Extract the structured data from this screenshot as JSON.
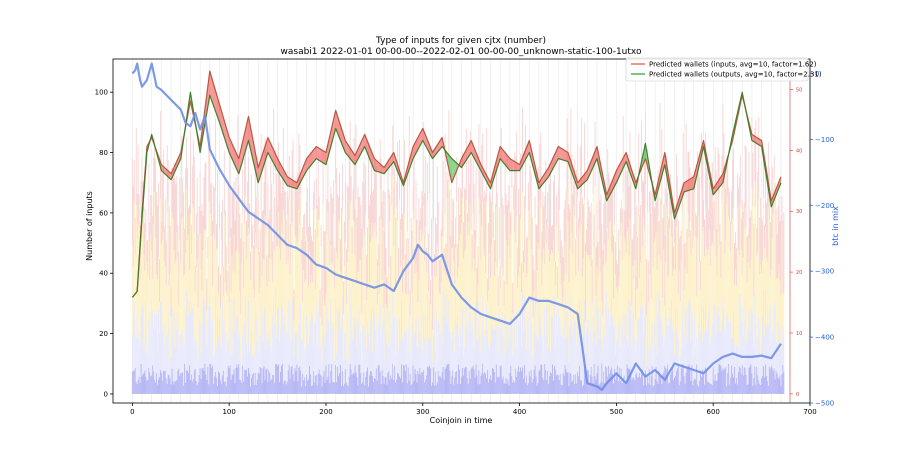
{
  "chart_data": {
    "type": "line",
    "title": "Type of inputs for given cjtx (number)",
    "subtitle": "wasabi1 2022-01-01 00-00-00--2022-02-01 00-00-00_unknown-static-100-1utxo",
    "xlabel": "Coinjoin in time",
    "ylabel": "Number of inputs",
    "y2label": "",
    "y3label": "btc in mix",
    "xlim": [
      -20,
      700
    ],
    "ylim": [
      -3,
      111
    ],
    "y2lim": [
      -1.5,
      55
    ],
    "y3lim": [
      -500,
      22
    ],
    "x_ticks": [
      0,
      100,
      200,
      300,
      400,
      500,
      600,
      700
    ],
    "y_ticks": [
      0,
      20,
      40,
      60,
      80,
      100
    ],
    "y2_ticks": [
      0,
      10,
      20,
      30,
      40,
      50
    ],
    "y3_ticks": [
      0,
      -100,
      -200,
      -300,
      -400,
      -500
    ],
    "grid": "vertical",
    "legend_position": "top-right",
    "legend": [
      "Predicted wallets (inputs, avg=10, factor=1.62)",
      "Predicted wallets (outputs, avg=10, factor=2.31)"
    ],
    "series": [
      {
        "name": "Predicted wallets (inputs, avg=10, factor=1.62)",
        "color": "#e74c3c",
        "x": [
          0,
          5,
          10,
          15,
          20,
          30,
          40,
          50,
          60,
          70,
          80,
          90,
          100,
          110,
          120,
          130,
          140,
          150,
          160,
          170,
          180,
          190,
          200,
          210,
          220,
          230,
          240,
          250,
          260,
          270,
          280,
          290,
          300,
          310,
          320,
          330,
          340,
          350,
          360,
          370,
          380,
          390,
          400,
          410,
          420,
          430,
          440,
          450,
          460,
          470,
          480,
          490,
          500,
          510,
          520,
          530,
          540,
          550,
          560,
          570,
          580,
          590,
          600,
          610,
          620,
          630,
          640,
          650,
          660,
          670
        ],
        "values": [
          32,
          34,
          60,
          82,
          85,
          76,
          73,
          80,
          97,
          82,
          107,
          96,
          85,
          78,
          92,
          75,
          85,
          78,
          72,
          70,
          78,
          82,
          80,
          94,
          84,
          79,
          86,
          78,
          75,
          80,
          70,
          82,
          88,
          80,
          85,
          70,
          78,
          84,
          76,
          70,
          82,
          78,
          76,
          84,
          70,
          75,
          82,
          80,
          70,
          74,
          82,
          66,
          74,
          80,
          70,
          78,
          66,
          80,
          60,
          70,
          72,
          84,
          68,
          73,
          84,
          99,
          86,
          84,
          64,
          72
        ]
      },
      {
        "name": "Predicted wallets (outputs, avg=10, factor=2.31)",
        "color": "#2ca02c",
        "x": [
          0,
          5,
          10,
          15,
          20,
          30,
          40,
          50,
          60,
          70,
          80,
          90,
          100,
          110,
          120,
          130,
          140,
          150,
          160,
          170,
          180,
          190,
          200,
          210,
          220,
          230,
          240,
          250,
          260,
          270,
          280,
          290,
          300,
          310,
          320,
          330,
          340,
          350,
          360,
          370,
          380,
          390,
          400,
          410,
          420,
          430,
          440,
          450,
          460,
          470,
          480,
          490,
          500,
          510,
          520,
          530,
          540,
          550,
          560,
          570,
          580,
          590,
          600,
          610,
          620,
          630,
          640,
          650,
          660,
          670
        ],
        "values": [
          32,
          34,
          58,
          80,
          86,
          74,
          71,
          78,
          100,
          80,
          99,
          90,
          80,
          73,
          84,
          70,
          80,
          74,
          69,
          68,
          74,
          78,
          76,
          88,
          80,
          76,
          82,
          74,
          73,
          77,
          69,
          78,
          84,
          78,
          82,
          78,
          75,
          80,
          74,
          68,
          78,
          74,
          74,
          80,
          68,
          72,
          78,
          77,
          68,
          71,
          78,
          64,
          70,
          77,
          68,
          83,
          64,
          76,
          58,
          67,
          68,
          82,
          66,
          70,
          86,
          100,
          84,
          82,
          62,
          70
        ]
      },
      {
        "name": "btc in mix",
        "color": "#6b8de3",
        "axis": "right",
        "x": [
          0,
          3,
          5,
          8,
          10,
          15,
          20,
          25,
          30,
          40,
          50,
          55,
          60,
          65,
          70,
          75,
          80,
          85,
          90,
          100,
          110,
          120,
          130,
          140,
          150,
          160,
          170,
          180,
          190,
          200,
          210,
          220,
          230,
          240,
          250,
          260,
          270,
          280,
          290,
          295,
          300,
          305,
          310,
          320,
          330,
          340,
          350,
          360,
          370,
          380,
          390,
          400,
          410,
          420,
          430,
          440,
          450,
          460,
          470,
          480,
          485,
          490,
          500,
          510,
          520,
          530,
          540,
          550,
          560,
          570,
          580,
          590,
          600,
          610,
          620,
          630,
          640,
          650,
          660,
          670
        ],
        "values": [
          0,
          5,
          15,
          -10,
          -20,
          -10,
          15,
          -20,
          -25,
          -40,
          -55,
          -75,
          -80,
          -60,
          -85,
          -65,
          -115,
          -130,
          -145,
          -170,
          -190,
          -210,
          -220,
          -230,
          -245,
          -260,
          -265,
          -275,
          -290,
          -295,
          -305,
          -310,
          -315,
          -320,
          -325,
          -320,
          -330,
          -300,
          -280,
          -260,
          -270,
          -275,
          -285,
          -275,
          -320,
          -340,
          -355,
          -365,
          -370,
          -375,
          -380,
          -365,
          -340,
          -345,
          -345,
          -350,
          -355,
          -365,
          -470,
          -475,
          -480,
          -470,
          -455,
          -470,
          -440,
          -460,
          -450,
          -465,
          -440,
          -445,
          -450,
          -455,
          -440,
          -430,
          -425,
          -430,
          -430,
          -428,
          -432,
          -410
        ]
      }
    ],
    "stacked_bars": {
      "x_range": [
        0,
        673
      ],
      "layers": [
        {
          "name": "bottom",
          "color": "#b4b4f5",
          "typical": 7
        },
        {
          "name": "middle",
          "color": "#e6e8fb",
          "typical": 18
        },
        {
          "name": "upper",
          "color": "#fdf1c9",
          "typical": 28
        },
        {
          "name": "top",
          "color": "#f8d4d4",
          "typical": 20
        }
      ]
    }
  }
}
